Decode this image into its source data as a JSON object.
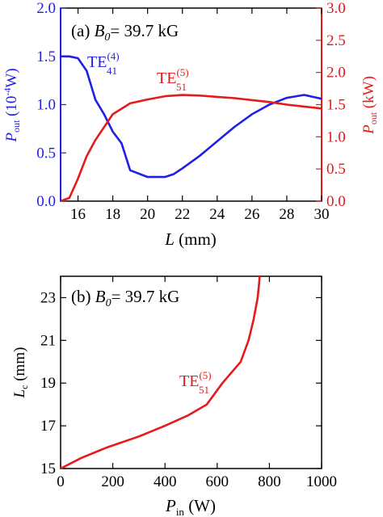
{
  "chart_data": [
    {
      "type": "line",
      "panel_label": "(a)",
      "param_symbol": "B",
      "param_sub": "0",
      "param_value": "= 39.7 kG",
      "xlabel": "L",
      "xunit": " (mm)",
      "xlim": [
        15,
        30
      ],
      "xticks": [
        16,
        18,
        20,
        22,
        24,
        26,
        28,
        30
      ],
      "ylabel_left": {
        "symbol": "P",
        "sub": "out",
        "unit_pre": " (10",
        "unit_sup": "-4",
        "unit_post": "W)"
      },
      "ylim_left": [
        0,
        2.0
      ],
      "yticks_left": [
        "0.0",
        "0.5",
        "1.0",
        "1.5",
        "2.0"
      ],
      "ylabel_right": {
        "symbol": "P",
        "sub": "out",
        "unit": " (kW)"
      },
      "ylim_right": [
        0,
        3.0
      ],
      "yticks_right": [
        "0.0",
        "0.5",
        "1.0",
        "1.5",
        "2.0",
        "2.5",
        "3.0"
      ],
      "series": [
        {
          "name_main": "TE",
          "name_sub": "41",
          "name_sup": "(4)",
          "color": "#1f1fe6",
          "axis": "left",
          "x": [
            15.0,
            15.5,
            16.0,
            16.5,
            17.0,
            17.5,
            18.0,
            18.5,
            19.0,
            20.0,
            21.0,
            21.5,
            22.0,
            23.0,
            24.0,
            25.0,
            26.0,
            27.0,
            28.0,
            29.0,
            29.5,
            30.0
          ],
          "y": [
            1.5,
            1.5,
            1.48,
            1.35,
            1.05,
            0.9,
            0.72,
            0.6,
            0.32,
            0.25,
            0.25,
            0.28,
            0.34,
            0.47,
            0.62,
            0.77,
            0.9,
            1.0,
            1.07,
            1.1,
            1.08,
            1.06
          ]
        },
        {
          "name_main": "TE",
          "name_sub": "51",
          "name_sup": "(5)",
          "color": "#e61a1a",
          "axis": "right",
          "x": [
            15.0,
            15.5,
            16.0,
            16.5,
            17.0,
            18.0,
            19.0,
            20.0,
            21.0,
            22.0,
            23.0,
            24.0,
            25.0,
            26.0,
            27.0,
            28.0,
            29.0,
            30.0
          ],
          "y": [
            0.0,
            0.05,
            0.35,
            0.7,
            0.95,
            1.35,
            1.52,
            1.58,
            1.63,
            1.65,
            1.64,
            1.62,
            1.6,
            1.57,
            1.54,
            1.5,
            1.47,
            1.44
          ]
        }
      ]
    },
    {
      "type": "line",
      "panel_label": "(b)",
      "param_symbol": "B",
      "param_sub": "0",
      "param_value": "= 39.7 kG",
      "xlabel": "P",
      "xlabel_sub": "in",
      "xunit": " (W)",
      "xlim": [
        0,
        1000
      ],
      "xticks": [
        0,
        200,
        400,
        600,
        800,
        1000
      ],
      "ylabel": "L",
      "ylabel_sub": "c",
      "yunit": " (mm)",
      "ylim": [
        15,
        24
      ],
      "yticks": [
        15,
        17,
        19,
        21,
        23
      ],
      "series": [
        {
          "name_main": "TE",
          "name_sub": "51",
          "name_sup": "(5)",
          "color": "#e61a1a",
          "x": [
            0,
            80,
            180,
            300,
            400,
            490,
            560,
            620,
            690,
            720,
            740,
            755,
            760,
            763
          ],
          "y": [
            15.0,
            15.5,
            16.0,
            16.5,
            17.0,
            17.5,
            18.0,
            19.0,
            20.0,
            21.0,
            22.0,
            23.0,
            23.6,
            24.0
          ]
        }
      ]
    }
  ]
}
